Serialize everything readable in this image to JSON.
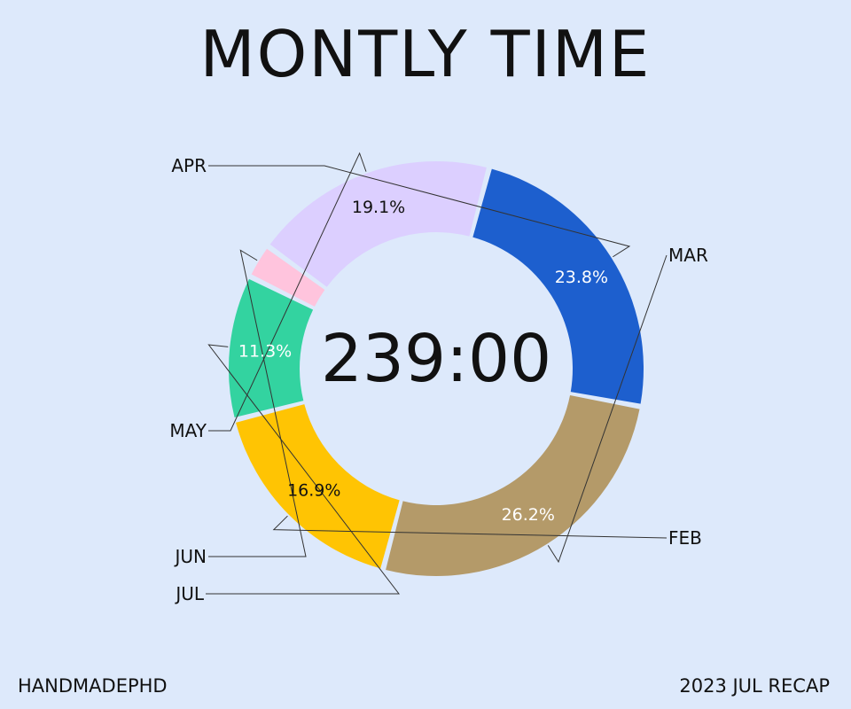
{
  "chart_data": {
    "type": "pie",
    "title": "MONTLY TIME",
    "center_text": "239:00",
    "categories": [
      "MAR",
      "FEB",
      "JUL",
      "JUN",
      "MAY",
      "APR"
    ],
    "values": [
      26.2,
      16.9,
      11.3,
      2.7,
      19.1,
      23.8
    ],
    "labels": [
      "26.2%",
      "16.9%",
      "11.3%",
      "",
      "19.1%",
      "23.8%"
    ],
    "colors": [
      "#b49a69",
      "#ffc403",
      "#33d3a0",
      "#ffc4dd",
      "#dccfff",
      "#1d5fce"
    ],
    "label_colors": [
      "#ffffff",
      "#111111",
      "#ffffff",
      "#111111",
      "#111111",
      "#ffffff"
    ],
    "legend": "none"
  },
  "footer": {
    "left": "HANDMADEPHD",
    "right": "2023 JUL RECAP"
  }
}
